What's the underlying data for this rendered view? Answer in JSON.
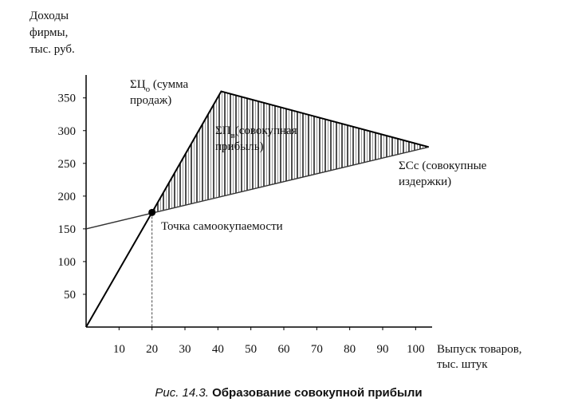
{
  "chart_data": {
    "type": "line",
    "y_label_lines": [
      "Доходы",
      "фирмы,",
      "тыс. руб."
    ],
    "x_label_lines": [
      "Выпуск товаров,",
      "тыс. штук"
    ],
    "xlim": [
      0,
      105
    ],
    "ylim": [
      0,
      385
    ],
    "xticks": [
      10,
      20,
      30,
      40,
      50,
      60,
      70,
      80,
      90,
      100
    ],
    "yticks": [
      50,
      100,
      150,
      200,
      250,
      300,
      350
    ],
    "color": "#000000",
    "series": [
      {
        "x": [
          0,
          20,
          41,
          104
        ],
        "values": [
          0,
          175,
          360,
          275
        ]
      },
      {
        "x": [
          0,
          104
        ],
        "values": [
          150,
          275
        ]
      }
    ],
    "break_even": {
      "x": 20,
      "y": 175,
      "label": "Точка самоокупаемости"
    },
    "annotations": [
      {
        "symbol": "ΣЦ",
        "sub": "о",
        "text": " (сумма",
        "text2": "продаж)"
      },
      {
        "symbol": "ΣП",
        "sub": "в",
        "text": "(совокупная",
        "text2": "прибыль)"
      },
      {
        "symbol": "ΣСс",
        "text": " (совокупные",
        "text2": "издержки)"
      }
    ],
    "caption": {
      "number": "Рис. 14.3.",
      "text": "Образование совокупной прибыли"
    }
  }
}
